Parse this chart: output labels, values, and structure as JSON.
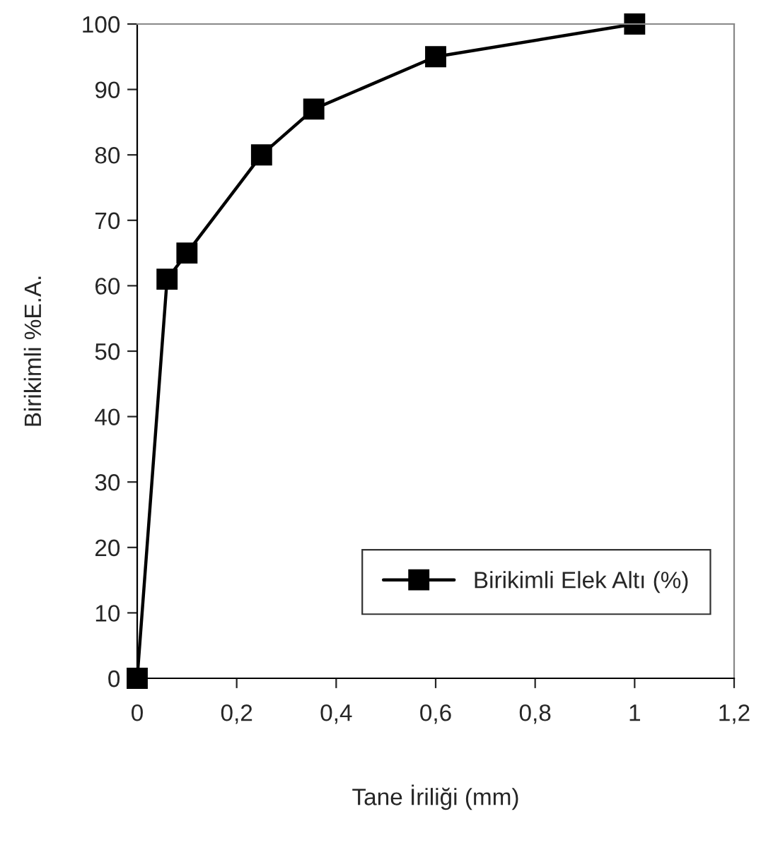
{
  "chart_data": {
    "type": "line",
    "xlabel": "Tane İriliği (mm)",
    "ylabel": "Birikimli %E.A.",
    "x": [
      0,
      0.06,
      0.1,
      0.25,
      0.355,
      0.6,
      1
    ],
    "series": [
      {
        "name": "Birikimli Elek Altı (%)",
        "color": "#000000",
        "values": [
          0,
          61,
          65,
          80,
          87,
          95,
          100
        ]
      }
    ],
    "xlim": [
      0,
      1.2
    ],
    "xticks": [
      {
        "value": 0,
        "label": "0"
      },
      {
        "value": 0.2,
        "label": "0,2"
      },
      {
        "value": 0.4,
        "label": "0,4"
      },
      {
        "value": 0.6,
        "label": "0,6"
      },
      {
        "value": 0.8,
        "label": "0,8"
      },
      {
        "value": 1,
        "label": "1"
      },
      {
        "value": 1.2,
        "label": "1,2"
      }
    ],
    "ylim": [
      0,
      100
    ],
    "yticks": [
      0,
      10,
      20,
      30,
      40,
      50,
      60,
      70,
      80,
      90,
      100
    ],
    "marker": "square",
    "line_style": "solid",
    "legend": "bottom right",
    "grid": false
  }
}
